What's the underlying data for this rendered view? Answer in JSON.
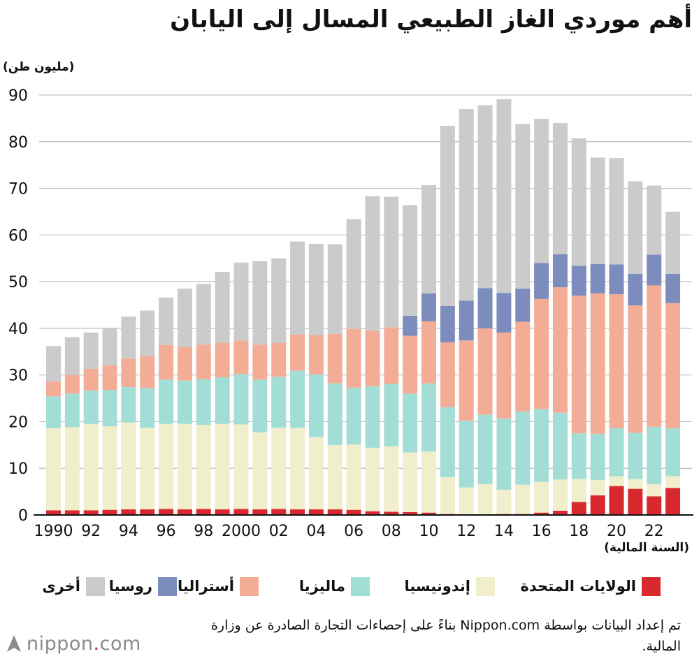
{
  "title": "أهم موردي الغاز الطبيعي المسال إلى اليابان",
  "unit_label": "(مليون طن)",
  "x_axis_title": "(السنة المالية)",
  "source_note": "تم إعداد البيانات بواسطة Nippon.com بناءً على إحصاءات التجارة الصادرة عن وزارة المالية.",
  "logo": {
    "text_main": "nippon",
    "text_dot": ".",
    "text_tail": "com"
  },
  "colors": {
    "us": "#d7292e",
    "indonesia": "#f1eecb",
    "malaysia": "#a3ded6",
    "australia": "#f3ad96",
    "russia": "#7c8cbd",
    "other": "#cbcbcb",
    "grid": "#bfbfbf",
    "axis": "#111111"
  },
  "legend": [
    {
      "key": "us",
      "label": "الولايات المتحدة",
      "icon": "square-swatch"
    },
    {
      "key": "indonesia",
      "label": "إندونيسيا",
      "icon": "square-swatch"
    },
    {
      "key": "malaysia",
      "label": "ماليزيا",
      "icon": "square-swatch"
    },
    {
      "key": "australia",
      "label": "أستراليا",
      "icon": "square-swatch"
    },
    {
      "key": "russia",
      "label": "روسيا",
      "icon": "square-swatch"
    },
    {
      "key": "other",
      "label": "أخرى",
      "icon": "square-swatch"
    }
  ],
  "chart_data": {
    "type": "bar",
    "stacked": true,
    "title": "أهم موردي الغاز الطبيعي المسال إلى اليابان",
    "xlabel": "(السنة المالية)",
    "ylabel": "(مليون طن)",
    "ylim": [
      0,
      90
    ],
    "yticks": [
      0,
      10,
      20,
      30,
      40,
      50,
      60,
      70,
      80,
      90
    ],
    "grid": true,
    "legend_position": "bottom",
    "x": [
      1990,
      1991,
      1992,
      1993,
      1994,
      1995,
      1996,
      1997,
      1998,
      1999,
      2000,
      2001,
      2002,
      2003,
      2004,
      2005,
      2006,
      2007,
      2008,
      2009,
      2010,
      2011,
      2012,
      2013,
      2014,
      2015,
      2016,
      2017,
      2018,
      2019,
      2020,
      2021,
      2022,
      2023
    ],
    "x_tick_labels": [
      {
        "year": 1990,
        "label": "1990"
      },
      {
        "year": 1992,
        "label": "92"
      },
      {
        "year": 1994,
        "label": "94"
      },
      {
        "year": 1996,
        "label": "96"
      },
      {
        "year": 1998,
        "label": "98"
      },
      {
        "year": 2000,
        "label": "2000"
      },
      {
        "year": 2002,
        "label": "02"
      },
      {
        "year": 2004,
        "label": "04"
      },
      {
        "year": 2006,
        "label": "06"
      },
      {
        "year": 2008,
        "label": "08"
      },
      {
        "year": 2010,
        "label": "10"
      },
      {
        "year": 2012,
        "label": "12"
      },
      {
        "year": 2014,
        "label": "14"
      },
      {
        "year": 2016,
        "label": "16"
      },
      {
        "year": 2018,
        "label": "18"
      },
      {
        "year": 2020,
        "label": "20"
      },
      {
        "year": 2022,
        "label": "22"
      }
    ],
    "series": [
      {
        "key": "us",
        "name": "الولايات المتحدة",
        "values": [
          1.0,
          1.0,
          1.0,
          1.1,
          1.2,
          1.2,
          1.3,
          1.2,
          1.3,
          1.2,
          1.3,
          1.2,
          1.3,
          1.2,
          1.2,
          1.2,
          1.1,
          0.8,
          0.7,
          0.6,
          0.5,
          0.2,
          0.1,
          0.1,
          0.2,
          0.2,
          0.5,
          0.9,
          2.8,
          4.2,
          6.2,
          5.6,
          4.0,
          5.8
        ]
      },
      {
        "key": "indonesia",
        "name": "إندونيسيا",
        "values": [
          17.6,
          17.8,
          18.5,
          17.9,
          18.6,
          17.5,
          18.2,
          18.3,
          18.0,
          18.3,
          18.1,
          16.5,
          17.4,
          17.5,
          15.5,
          13.8,
          14.0,
          13.6,
          14.0,
          12.8,
          13.1,
          7.9,
          5.8,
          6.5,
          5.2,
          6.3,
          6.6,
          6.7,
          4.9,
          3.3,
          2.1,
          2.1,
          2.6,
          2.5
        ]
      },
      {
        "key": "malaysia",
        "name": "ماليزيا",
        "values": [
          6.8,
          7.2,
          7.2,
          7.8,
          7.6,
          8.5,
          9.5,
          9.3,
          9.8,
          10.0,
          10.8,
          11.3,
          10.9,
          12.2,
          13.4,
          13.2,
          12.2,
          13.2,
          13.4,
          12.6,
          14.6,
          15.0,
          14.3,
          14.9,
          15.3,
          15.7,
          15.6,
          14.3,
          9.8,
          9.9,
          10.3,
          9.9,
          12.3,
          10.3
        ]
      },
      {
        "key": "australia",
        "name": "أستراليا",
        "values": [
          3.2,
          4.0,
          4.6,
          5.3,
          6.1,
          6.9,
          7.4,
          7.2,
          7.4,
          7.4,
          7.2,
          7.5,
          7.3,
          7.8,
          8.5,
          10.6,
          12.6,
          11.9,
          12.1,
          12.4,
          13.3,
          13.9,
          17.2,
          18.5,
          18.4,
          19.2,
          23.6,
          26.9,
          29.5,
          30.1,
          28.7,
          27.3,
          30.3,
          26.8
        ]
      },
      {
        "key": "russia",
        "name": "روسيا",
        "values": [
          0,
          0,
          0,
          0,
          0,
          0,
          0,
          0,
          0,
          0,
          0,
          0,
          0,
          0,
          0,
          0,
          0,
          0,
          0,
          4.3,
          6.0,
          7.8,
          8.5,
          8.6,
          8.5,
          7.1,
          7.7,
          7.1,
          6.4,
          6.3,
          6.4,
          6.8,
          6.6,
          6.3
        ]
      },
      {
        "key": "other",
        "name": "أخرى",
        "values": [
          7.6,
          8.1,
          7.8,
          8.0,
          9.0,
          9.7,
          10.2,
          12.5,
          13.0,
          15.2,
          16.7,
          17.9,
          18.1,
          19.9,
          19.5,
          19.2,
          23.5,
          28.8,
          28.0,
          23.7,
          23.2,
          38.6,
          41.1,
          39.2,
          41.5,
          35.3,
          30.9,
          28.1,
          27.3,
          22.8,
          22.8,
          19.8,
          14.8,
          13.3
        ]
      }
    ]
  }
}
